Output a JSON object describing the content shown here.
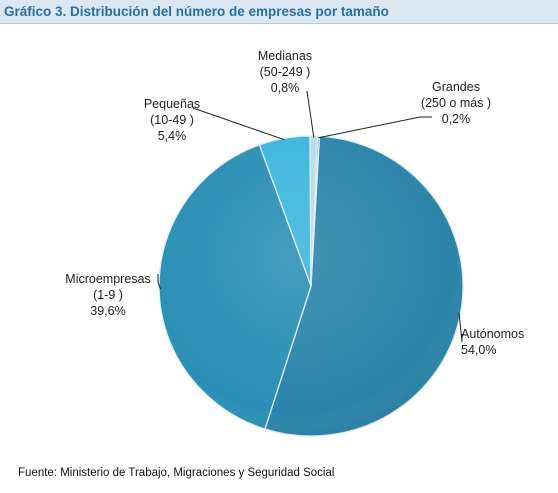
{
  "chart_data": {
    "type": "pie",
    "title": "Gráfico 3. Distribución del número de empresas por tamaño",
    "slices": [
      {
        "label": "Autónomos",
        "sublabel": "",
        "percent_label": "54,0%",
        "value": 54.0,
        "color": "#2b84a9"
      },
      {
        "label": "Microempresas",
        "sublabel": "(1-9 )",
        "percent_label": "39,6%",
        "value": 39.6,
        "color": "#2a8fb5"
      },
      {
        "label": "Pequeñas",
        "sublabel": "(10-49 )",
        "percent_label": "5,4%",
        "value": 5.4,
        "color": "#3eb6de"
      },
      {
        "label": "Medianas",
        "sublabel": "(50-249 )",
        "percent_label": "0,8%",
        "value": 0.8,
        "color": "#b9dbe8"
      },
      {
        "label": "Grandes",
        "sublabel": "(250 o más )",
        "percent_label": "0,2%",
        "value": 0.2,
        "color": "#6d8a98"
      }
    ],
    "source": "Fuente: Ministerio de Trabajo, Migraciones y Seguridad Social"
  }
}
